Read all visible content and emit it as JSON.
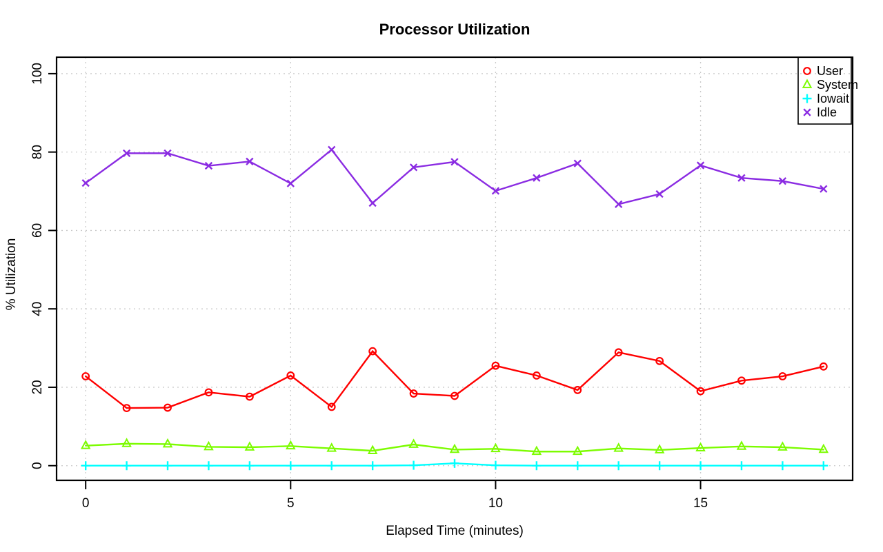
{
  "chart_data": {
    "type": "line",
    "title": "Processor Utilization",
    "xlabel": "Elapsed Time (minutes)",
    "ylabel": "% Utilization",
    "x": [
      0,
      1,
      2,
      3,
      4,
      5,
      6,
      7,
      8,
      9,
      10,
      11,
      12,
      13,
      14,
      15,
      16,
      17,
      18
    ],
    "xticks": [
      0,
      5,
      10,
      15
    ],
    "yticks": [
      0,
      20,
      40,
      60,
      80,
      100
    ],
    "xlim": [
      -0.71,
      18.71
    ],
    "ylim": [
      -3.74,
      104.2
    ],
    "grid": true,
    "grid_color": "#c9c9c9",
    "axis_color": "#000000",
    "legend_position": "top-right",
    "series": [
      {
        "name": "User",
        "color": "#ff0000",
        "marker": "circle",
        "values": [
          22.8,
          14.7,
          14.8,
          18.7,
          17.6,
          23.0,
          15.0,
          29.2,
          18.4,
          17.8,
          25.5,
          23.0,
          19.3,
          28.9,
          26.7,
          19.0,
          21.7,
          22.8,
          25.3
        ]
      },
      {
        "name": "System",
        "color": "#7cfc00",
        "marker": "triangle",
        "values": [
          5.1,
          5.6,
          5.5,
          4.8,
          4.7,
          5.0,
          4.4,
          3.8,
          5.4,
          4.1,
          4.3,
          3.6,
          3.6,
          4.4,
          4.0,
          4.5,
          4.9,
          4.7,
          4.1
        ]
      },
      {
        "name": "Iowait",
        "color": "#00ffff",
        "marker": "plus",
        "values": [
          0,
          0,
          0,
          0,
          0,
          0,
          0,
          0,
          0.1,
          0.6,
          0.1,
          0,
          0,
          0,
          0,
          0,
          0,
          0,
          0
        ]
      },
      {
        "name": "Idle",
        "color": "#8a2be2",
        "marker": "x",
        "values": [
          72.1,
          79.7,
          79.7,
          76.5,
          77.6,
          72.0,
          80.6,
          67.0,
          76.1,
          77.5,
          70.1,
          73.4,
          77.1,
          66.7,
          69.3,
          76.6,
          73.4,
          72.6,
          70.6
        ]
      }
    ]
  }
}
